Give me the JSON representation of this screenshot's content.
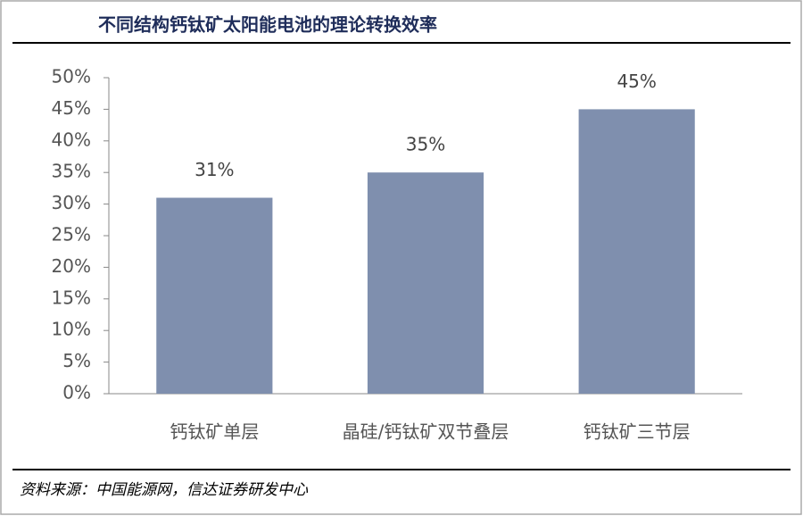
{
  "chart_data": {
    "type": "bar",
    "title": "不同结构钙钛矿太阳能电池的理论转换效率",
    "categories": [
      "钙钛矿单层",
      "晶硅/钙钛矿双节叠层",
      "钙钛矿三节层"
    ],
    "values": [
      31,
      35,
      45
    ],
    "value_labels": [
      "31%",
      "35%",
      "45%"
    ],
    "color": "#7f8fae",
    "ylim": [
      0,
      50
    ],
    "yticks": [
      {
        "value": 0,
        "label": "0%"
      },
      {
        "value": 5,
        "label": "5%"
      },
      {
        "value": 10,
        "label": "10%"
      },
      {
        "value": 15,
        "label": "15%"
      },
      {
        "value": 20,
        "label": "20%"
      },
      {
        "value": 25,
        "label": "25%"
      },
      {
        "value": 30,
        "label": "30%"
      },
      {
        "value": 35,
        "label": "35%"
      },
      {
        "value": 40,
        "label": "40%"
      },
      {
        "value": 45,
        "label": "45%"
      },
      {
        "value": 50,
        "label": "50%"
      }
    ],
    "grid": false,
    "source": "资料来源：中国能源网，信达证券研发中心"
  }
}
